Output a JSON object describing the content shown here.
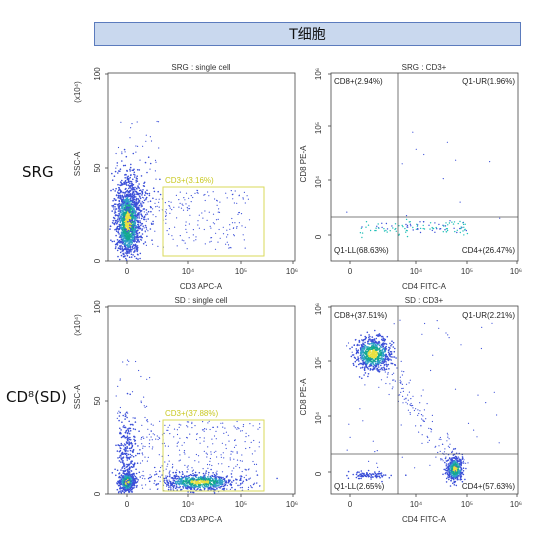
{
  "header": {
    "title": "T细胞"
  },
  "row_labels": {
    "top": "SRG",
    "bottom": "CD⁸(SD)"
  },
  "colors": {
    "header_bg": "#c9d8ee",
    "header_border": "#5b7bbd",
    "gate": "#dada59",
    "gate_label": "#c8c820",
    "dots": "#3b4fd8",
    "density_core": "#14a890",
    "density_hot": "#e8e040"
  },
  "chart_data": [
    {
      "id": "srg-single-cell",
      "type": "scatter",
      "title": "SRG : single cell",
      "xlabel": "CD3 APC-A",
      "ylabel": "SSC-A",
      "yunit": "(x10⁴)",
      "x_ticks": [
        "0",
        "10⁴",
        "10⁵",
        "10⁶"
      ],
      "y_ticks": [
        "0",
        "50",
        "100"
      ],
      "x_scale": "biexponential",
      "ylim": [
        0,
        100
      ],
      "gate": {
        "label": "CD3+(3.16%)",
        "x_range": [
          "10³·⁶",
          "10⁵·⁸"
        ],
        "y_range": [
          4,
          40
        ]
      },
      "populations": [
        {
          "center": [
            "0",
            22
          ],
          "spread": "dense",
          "color": "density"
        }
      ]
    },
    {
      "id": "srg-cd3",
      "type": "scatter",
      "title": "SRG : CD3+",
      "xlabel": "CD4 FITC-A",
      "ylabel": "CD8 PE-A",
      "x_ticks": [
        "0",
        "10⁴",
        "10⁵",
        "10⁶"
      ],
      "y_ticks": [
        "0",
        "10⁴",
        "10⁵",
        "10⁶"
      ],
      "quadrants": [
        {
          "label": "CD8+(2.94%)",
          "position": "top-left"
        },
        {
          "label": "Q1-UR(1.96%)",
          "position": "top-right"
        },
        {
          "label": "Q1-LL(68.63%)",
          "position": "bottom-left"
        },
        {
          "label": "CD4+(26.47%)",
          "position": "bottom-right"
        }
      ]
    },
    {
      "id": "sd-single-cell",
      "type": "scatter",
      "title": "SD : single cell",
      "xlabel": "CD3 APC-A",
      "ylabel": "SSC-A",
      "yunit": "(x10⁴)",
      "x_ticks": [
        "0",
        "10⁴",
        "10⁵",
        "10⁶"
      ],
      "y_ticks": [
        "0",
        "50",
        "100"
      ],
      "x_scale": "biexponential",
      "ylim": [
        0,
        100
      ],
      "gate": {
        "label": "CD3+(37.88%)",
        "x_range": [
          "10³·⁶",
          "10⁵·⁸"
        ],
        "y_range": [
          3,
          40
        ]
      }
    },
    {
      "id": "sd-cd3",
      "type": "scatter",
      "title": "SD : CD3+",
      "xlabel": "CD4 FITC-A",
      "ylabel": "CD8 PE-A",
      "x_ticks": [
        "0",
        "10⁴",
        "10⁵",
        "10⁶"
      ],
      "y_ticks": [
        "0",
        "10⁴",
        "10⁵",
        "10⁶"
      ],
      "quadrants": [
        {
          "label": "CD8+(37.51%)",
          "position": "top-left"
        },
        {
          "label": "Q1-UR(2.21%)",
          "position": "top-right"
        },
        {
          "label": "Q1-LL(2.65%)",
          "position": "bottom-left"
        },
        {
          "label": "CD4+(57.63%)",
          "position": "bottom-right"
        }
      ]
    }
  ]
}
